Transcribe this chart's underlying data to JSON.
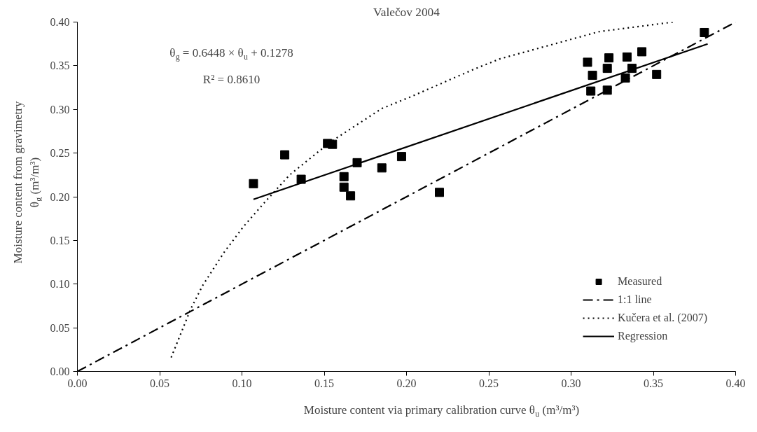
{
  "chart_data": {
    "type": "scatter",
    "title": "Valečov 2004",
    "xlabel": "Moisture content via primary calibration curve θ$_{u}$ (m³/m³)",
    "ylabel": "Moisture content from gravimetry\nθ$_{g}$ (m³/m³)",
    "xlim": [
      0,
      0.4
    ],
    "ylim": [
      0,
      0.4
    ],
    "xticks": [
      {
        "value": 0,
        "label": "0.00"
      },
      {
        "value": 0.05,
        "label": "0.05"
      },
      {
        "value": 0.1,
        "label": "0.10"
      },
      {
        "value": 0.15,
        "label": "0.15"
      },
      {
        "value": 0.2,
        "label": "0.20"
      },
      {
        "value": 0.25,
        "label": "0.25"
      },
      {
        "value": 0.3,
        "label": "0.30"
      },
      {
        "value": 0.35,
        "label": "0.35"
      },
      {
        "value": 0.4,
        "label": "0.40"
      }
    ],
    "yticks": [
      {
        "value": 0,
        "label": "0.00"
      },
      {
        "value": 0.05,
        "label": "0.05"
      },
      {
        "value": 0.1,
        "label": "0.10"
      },
      {
        "value": 0.15,
        "label": "0.15"
      },
      {
        "value": 0.2,
        "label": "0.20"
      },
      {
        "value": 0.25,
        "label": "0.25"
      },
      {
        "value": 0.3,
        "label": "0.30"
      },
      {
        "value": 0.35,
        "label": "0.35"
      },
      {
        "value": 0.4,
        "label": "0.40"
      }
    ],
    "grid": false,
    "legend": "bottom right",
    "annotations": [
      "θ$_{g}$ = 0.6448 × θ$_{u}$ + 0.1278",
      "R² = 0.8610"
    ],
    "series": [
      {
        "name": "Measured",
        "marker": "square",
        "color": "#000000",
        "x": [
          0.107,
          0.126,
          0.136,
          0.152,
          0.155,
          0.17,
          0.162,
          0.162,
          0.166,
          0.185,
          0.197,
          0.22,
          0.31,
          0.313,
          0.312,
          0.323,
          0.322,
          0.322,
          0.334,
          0.337,
          0.333,
          0.343,
          0.352,
          0.381
        ],
        "values": [
          0.215,
          0.248,
          0.22,
          0.261,
          0.26,
          0.239,
          0.223,
          0.211,
          0.201,
          0.233,
          0.246,
          0.205,
          0.354,
          0.339,
          0.321,
          0.359,
          0.347,
          0.322,
          0.36,
          0.347,
          0.336,
          0.366,
          0.34,
          0.388
        ]
      },
      {
        "name": "1:1 line",
        "type": "line",
        "line_style": "dashdot",
        "color": "#000000",
        "x": [
          0,
          0.4
        ],
        "values": [
          0,
          0.4
        ]
      },
      {
        "name": "Kučera et al. (2007)",
        "type": "line",
        "line_style": "dotted",
        "color": "#000000",
        "x": [
          0.057,
          0.069,
          0.076,
          0.089,
          0.101,
          0.114,
          0.129,
          0.154,
          0.185,
          0.202,
          0.241,
          0.257,
          0.317,
          0.362
        ],
        "values": [
          0.016,
          0.072,
          0.098,
          0.136,
          0.166,
          0.194,
          0.225,
          0.263,
          0.301,
          0.314,
          0.346,
          0.358,
          0.389,
          0.4
        ]
      },
      {
        "name": "Regression",
        "type": "line",
        "line_style": "solid",
        "color": "#000000",
        "x": [
          0.107,
          0.383
        ],
        "values": [
          0.197,
          0.375
        ]
      }
    ]
  }
}
